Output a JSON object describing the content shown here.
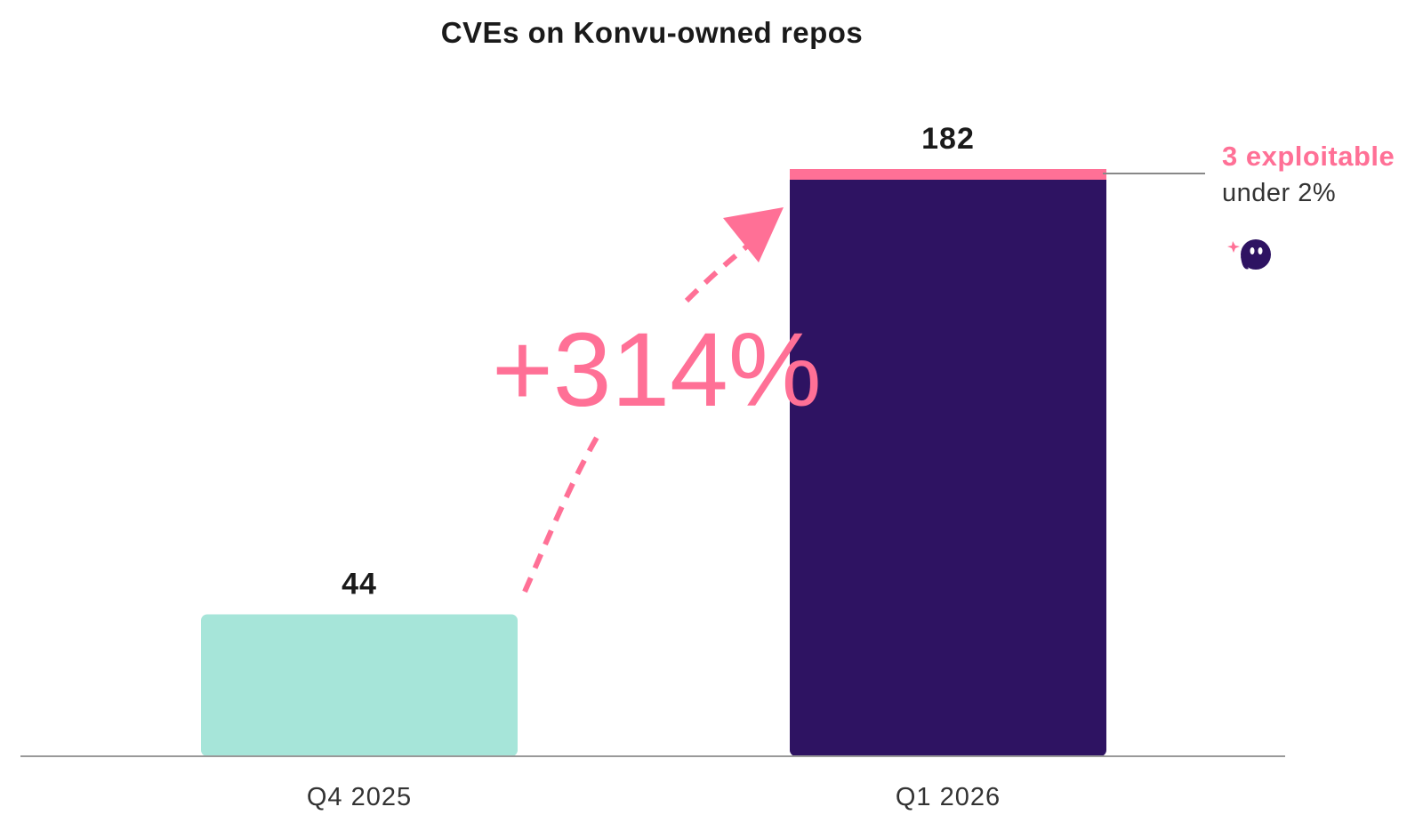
{
  "chart_data": {
    "type": "bar",
    "title": "CVEs on Konvu-owned repos",
    "categories": [
      "Q4 2025",
      "Q1 2026"
    ],
    "values": [
      44,
      182
    ],
    "data_labels": [
      "44",
      "182"
    ],
    "bar_colors": [
      "#a6e5d9",
      "#2e1362"
    ],
    "highlight_segment": {
      "category": "Q1 2026",
      "value": 3,
      "color": "#ff7096"
    },
    "ylim": [
      0,
      182
    ],
    "xlabel": "",
    "ylabel": "",
    "grid": false,
    "legend": "none",
    "annotations": {
      "growth": {
        "text": "+314%",
        "color": "#ff7096"
      },
      "exploitable": {
        "primary": "3 exploitable",
        "secondary": "under 2%"
      }
    }
  },
  "colors": {
    "accent": "#ff7096",
    "axis": "#999999",
    "text": "#1a1a1a"
  },
  "logo": {
    "icon": "ghost-mascot-icon",
    "color": "#2e1362"
  }
}
